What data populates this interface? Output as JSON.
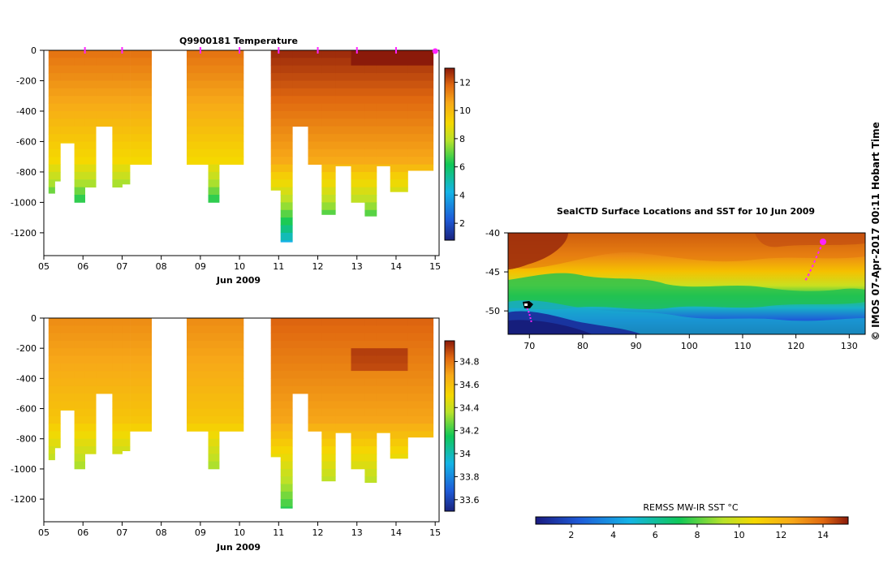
{
  "chart_data": [
    {
      "type": "heatmap",
      "title": "Q9900181  Temperature",
      "xlabel": "Jun 2009",
      "ylabel": "",
      "x_tick_labels": [
        "05",
        "06",
        "07",
        "08",
        "09",
        "10",
        "11",
        "12",
        "13",
        "14",
        "15"
      ],
      "y_tick_labels": [
        "0",
        "-200",
        "-400",
        "-600",
        "-800",
        "-1000",
        "-1200"
      ],
      "ylim": [
        -1350,
        0
      ],
      "xlim": [
        5,
        15.1
      ],
      "colorbar_ticks": [
        "2",
        "4",
        "6",
        "8",
        "10",
        "12"
      ],
      "colorbar_range": [
        0.8,
        13
      ]
    },
    {
      "type": "heatmap",
      "title": "",
      "xlabel": "Jun 2009",
      "ylabel": "",
      "x_tick_labels": [
        "05",
        "06",
        "07",
        "08",
        "09",
        "10",
        "11",
        "12",
        "13",
        "14",
        "15"
      ],
      "y_tick_labels": [
        "0",
        "-200",
        "-400",
        "-600",
        "-800",
        "-1000",
        "-1200"
      ],
      "ylim": [
        -1350,
        0
      ],
      "xlim": [
        5,
        15.1
      ],
      "colorbar_ticks": [
        "33.6",
        "33.8",
        "34",
        "34.2",
        "34.4",
        "34.6",
        "34.8"
      ],
      "colorbar_range": [
        33.5,
        34.98
      ]
    },
    {
      "type": "map",
      "title": "SealCTD Surface Locations and SST for 10 Jun 2009",
      "x_tick_labels": [
        "70",
        "80",
        "90",
        "100",
        "110",
        "120",
        "130"
      ],
      "y_tick_labels": [
        "-40",
        "-45",
        "-50"
      ],
      "xlim": [
        66,
        133
      ],
      "ylim": [
        -53,
        -40
      ],
      "colorbar_label": "REMSS MW-IR SST °C",
      "colorbar_ticks": [
        "2",
        "4",
        "6",
        "8",
        "10",
        "12",
        "14"
      ],
      "colorbar_range": [
        0.3,
        15.2
      ]
    }
  ],
  "profile_columns": [
    {
      "x0": 5.12,
      "x1": 5.28,
      "bottom": -940
    },
    {
      "x0": 5.28,
      "x1": 5.42,
      "bottom": -860
    },
    {
      "x0": 5.42,
      "x1": 5.78,
      "bottom": -610
    },
    {
      "x0": 5.78,
      "x1": 6.05,
      "bottom": -1000
    },
    {
      "x0": 6.05,
      "x1": 6.33,
      "bottom": -900
    },
    {
      "x0": 6.33,
      "x1": 6.75,
      "bottom": -500
    },
    {
      "x0": 6.75,
      "x1": 7.0,
      "bottom": -900
    },
    {
      "x0": 7.0,
      "x1": 7.2,
      "bottom": -880
    },
    {
      "x0": 7.2,
      "x1": 7.75,
      "bottom": -750
    },
    {
      "x0": 8.65,
      "x1": 9.2,
      "bottom": -750
    },
    {
      "x0": 9.2,
      "x1": 9.48,
      "bottom": -1000
    },
    {
      "x0": 9.48,
      "x1": 10.1,
      "bottom": -750
    },
    {
      "x0": 10.8,
      "x1": 11.05,
      "bottom": -920
    },
    {
      "x0": 11.05,
      "x1": 11.35,
      "bottom": -1260
    },
    {
      "x0": 11.35,
      "x1": 11.75,
      "bottom": -500
    },
    {
      "x0": 11.75,
      "x1": 12.1,
      "bottom": -750
    },
    {
      "x0": 12.1,
      "x1": 12.45,
      "bottom": -1080
    },
    {
      "x0": 12.45,
      "x1": 12.85,
      "bottom": -760
    },
    {
      "x0": 12.85,
      "x1": 13.2,
      "bottom": -1000
    },
    {
      "x0": 13.2,
      "x1": 13.5,
      "bottom": -1090
    },
    {
      "x0": 13.5,
      "x1": 13.85,
      "bottom": -760
    },
    {
      "x0": 13.85,
      "x1": 14.3,
      "bottom": -930
    },
    {
      "x0": 14.3,
      "x1": 14.95,
      "bottom": -790
    }
  ],
  "surfacing_markers_day": [
    6.05,
    7.0,
    9.0,
    10.0,
    11.0,
    12.0,
    13.0,
    14.0,
    15.0
  ],
  "credit": "©  IMOS 07-Apr-2017 00:11 Hobart Time",
  "colors": {
    "temp_ramp": [
      "#1a237e",
      "#1e5bd8",
      "#14b4e6",
      "#10c858",
      "#b8e22a",
      "#f5d800",
      "#f7a818",
      "#e06810",
      "#8b1a0a"
    ],
    "sal_ramp": [
      "#1a237e",
      "#1e5bd8",
      "#14b4e6",
      "#10c858",
      "#b8e22a",
      "#f5d800",
      "#f7a818",
      "#e06810",
      "#8b1a0a"
    ],
    "marker": "#ff22ff"
  }
}
